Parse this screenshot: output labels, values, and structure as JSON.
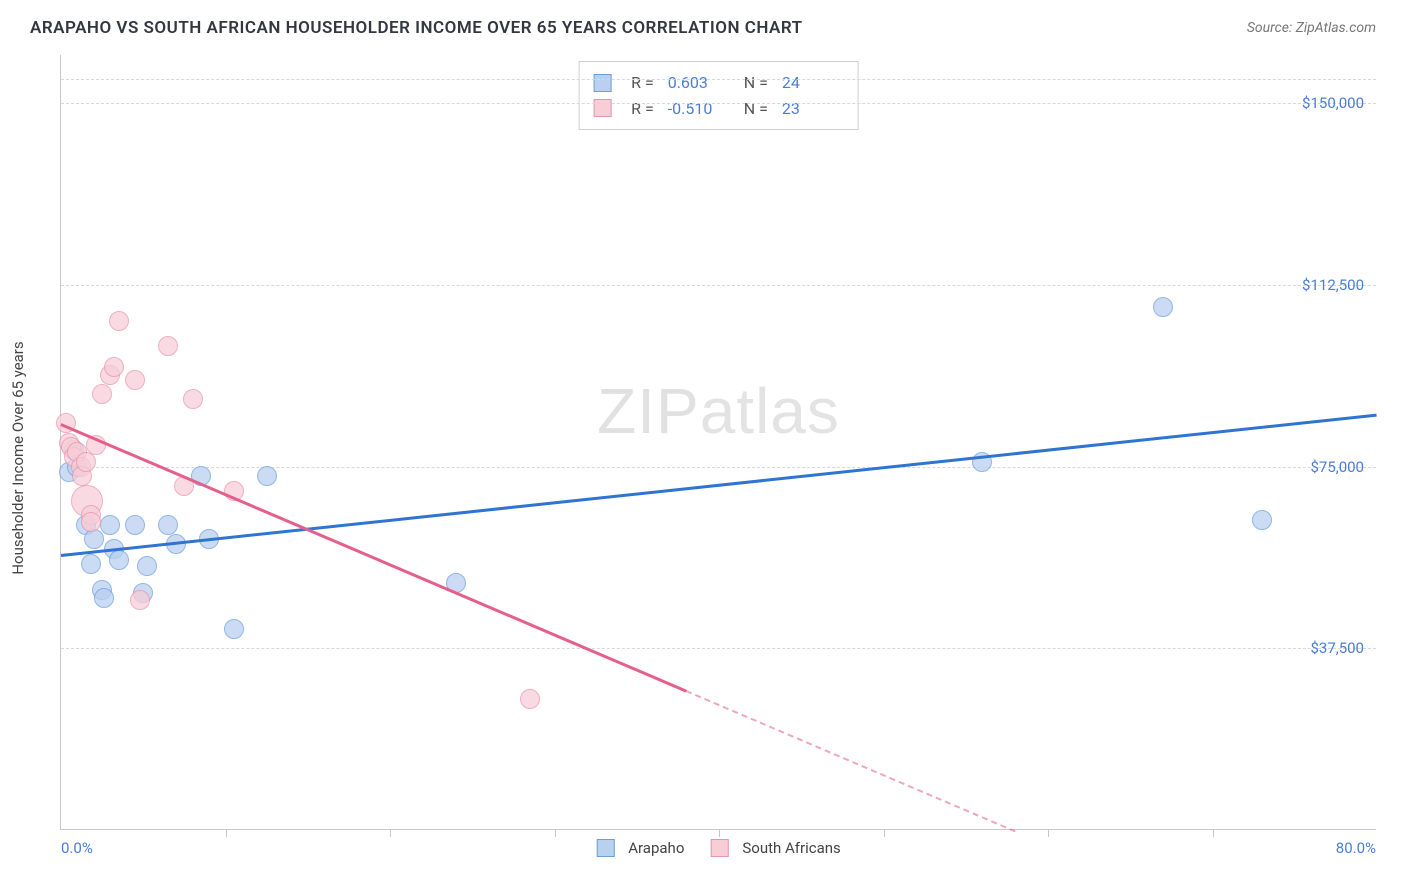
{
  "title": "ARAPAHO VS SOUTH AFRICAN HOUSEHOLDER INCOME OVER 65 YEARS CORRELATION CHART",
  "source": "Source: ZipAtlas.com",
  "watermark": "ZIPatlas",
  "y_axis_title": "Householder Income Over 65 years",
  "chart": {
    "type": "scatter",
    "xlim": [
      0,
      80
    ],
    "ylim": [
      0,
      160000
    ],
    "x_tick_step": 10,
    "x_labels": {
      "start": "0.0%",
      "end": "80.0%"
    },
    "y_ticks": [
      {
        "v": 37500,
        "label": "$37,500"
      },
      {
        "v": 75000,
        "label": "$75,000"
      },
      {
        "v": 112500,
        "label": "$112,500"
      },
      {
        "v": 150000,
        "label": "$150,000"
      }
    ],
    "grid_top_v": 155000,
    "background_color": "#ffffff",
    "grid_color": "#d8d8d8",
    "axis_color": "#c8c8c8"
  },
  "series": [
    {
      "name": "Arapaho",
      "color_fill": "#b9d0ef",
      "color_stroke": "#6f9ede",
      "opacity": 0.75,
      "marker_r": 10,
      "stats": {
        "R": "0.603",
        "N": "24"
      },
      "trend": {
        "x1": 0,
        "y1": 57000,
        "x2": 80,
        "y2": 86000,
        "color": "#2f74d0",
        "dash_after_x": null
      },
      "points": [
        {
          "x": 0.5,
          "y": 74000
        },
        {
          "x": 0.8,
          "y": 78500
        },
        {
          "x": 1.0,
          "y": 75000
        },
        {
          "x": 1.5,
          "y": 63000
        },
        {
          "x": 1.8,
          "y": 55000
        },
        {
          "x": 2.0,
          "y": 60000
        },
        {
          "x": 2.5,
          "y": 49500
        },
        {
          "x": 2.6,
          "y": 48000
        },
        {
          "x": 3.0,
          "y": 63000
        },
        {
          "x": 3.2,
          "y": 58000
        },
        {
          "x": 3.5,
          "y": 55800
        },
        {
          "x": 4.5,
          "y": 63000
        },
        {
          "x": 5.0,
          "y": 49000
        },
        {
          "x": 5.2,
          "y": 54500
        },
        {
          "x": 6.5,
          "y": 63000
        },
        {
          "x": 7.0,
          "y": 59000
        },
        {
          "x": 8.5,
          "y": 73000
        },
        {
          "x": 9.0,
          "y": 60000
        },
        {
          "x": 10.5,
          "y": 41500
        },
        {
          "x": 12.5,
          "y": 73000
        },
        {
          "x": 24.0,
          "y": 51000
        },
        {
          "x": 56.0,
          "y": 76000
        },
        {
          "x": 67.0,
          "y": 108000
        },
        {
          "x": 73.0,
          "y": 64000
        }
      ]
    },
    {
      "name": "South Africans",
      "color_fill": "#f7cdd7",
      "color_stroke": "#e893ab",
      "opacity": 0.72,
      "marker_r": 10,
      "stats": {
        "R": "-0.510",
        "N": "23"
      },
      "trend": {
        "x1": 0,
        "y1": 84000,
        "x2": 58,
        "y2": 0,
        "color": "#e65f8a",
        "dash_after_x": 38
      },
      "points": [
        {
          "x": 0.3,
          "y": 84000
        },
        {
          "x": 0.5,
          "y": 80000
        },
        {
          "x": 0.6,
          "y": 79000
        },
        {
          "x": 0.8,
          "y": 77000
        },
        {
          "x": 1.0,
          "y": 78000
        },
        {
          "x": 1.2,
          "y": 75000
        },
        {
          "x": 1.3,
          "y": 73000
        },
        {
          "x": 1.5,
          "y": 76000
        },
        {
          "x": 1.6,
          "y": 68000,
          "r": 16
        },
        {
          "x": 1.8,
          "y": 65000
        },
        {
          "x": 1.8,
          "y": 63500
        },
        {
          "x": 2.1,
          "y": 79500
        },
        {
          "x": 2.5,
          "y": 90000
        },
        {
          "x": 3.0,
          "y": 94000
        },
        {
          "x": 3.2,
          "y": 95500
        },
        {
          "x": 3.5,
          "y": 105000
        },
        {
          "x": 4.5,
          "y": 93000
        },
        {
          "x": 4.8,
          "y": 47500
        },
        {
          "x": 6.5,
          "y": 100000
        },
        {
          "x": 7.5,
          "y": 71000
        },
        {
          "x": 8.0,
          "y": 89000
        },
        {
          "x": 10.5,
          "y": 70000
        },
        {
          "x": 28.5,
          "y": 27000
        }
      ]
    }
  ],
  "legend": [
    {
      "label": "Arapaho",
      "fill": "#b9d0ef",
      "stroke": "#6f9ede"
    },
    {
      "label": "South Africans",
      "fill": "#f7cdd7",
      "stroke": "#e893ab"
    }
  ]
}
